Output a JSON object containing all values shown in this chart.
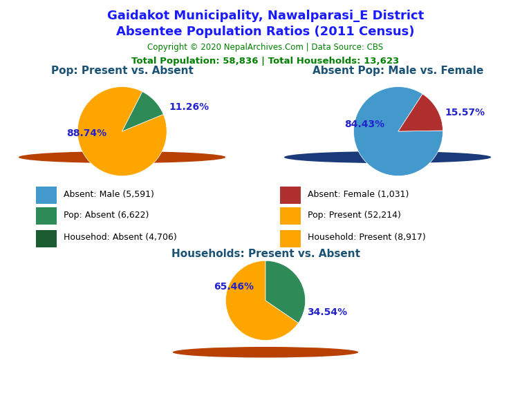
{
  "title_line1": "Gaidakot Municipality, Nawalparasi_E District",
  "title_line2": "Absentee Population Ratios (2011 Census)",
  "copyright": "Copyright © 2020 NepalArchives.Com | Data Source: CBS",
  "stats": "Total Population: 58,836 | Total Households: 13,623",
  "title_color": "#1a1aff",
  "copyright_color": "#008000",
  "stats_color": "#008000",
  "pie1_title": "Pop: Present vs. Absent",
  "pie1_values": [
    88.74,
    11.26
  ],
  "pie1_colors": [
    "#FFA500",
    "#2E8B57"
  ],
  "pie1_labels": [
    "88.74%",
    "11.26%"
  ],
  "pie2_title": "Absent Pop: Male vs. Female",
  "pie2_values": [
    84.43,
    15.57
  ],
  "pie2_colors": [
    "#4499CC",
    "#B03030"
  ],
  "pie2_labels": [
    "84.43%",
    "15.57%"
  ],
  "pie3_title": "Households: Present vs. Absent",
  "pie3_values": [
    65.46,
    34.54
  ],
  "pie3_colors": [
    "#FFA500",
    "#2E8B57"
  ],
  "pie3_labels": [
    "65.46%",
    "34.54%"
  ],
  "legend_entries": [
    {
      "label": "Absent: Male (5,591)",
      "color": "#4499CC"
    },
    {
      "label": "Absent: Female (1,031)",
      "color": "#B03030"
    },
    {
      "label": "Pop: Absent (6,622)",
      "color": "#2E8B57"
    },
    {
      "label": "Pop: Present (52,214)",
      "color": "#FFA500"
    },
    {
      "label": "Househod: Absent (4,706)",
      "color": "#1a5c30"
    },
    {
      "label": "Household: Present (8,917)",
      "color": "#FFA500"
    }
  ],
  "shadow_color_orange": "#B84000",
  "shadow_color_blue": "#1a3a7a",
  "pie1_startangle": 63,
  "pie2_startangle": 57,
  "pie3_startangle": 90,
  "label_color": "#2222cc",
  "label_fontsize": 10,
  "subtitle_color": "#1a5276",
  "title_fontsize_sub": 11,
  "background_color": "#ffffff"
}
